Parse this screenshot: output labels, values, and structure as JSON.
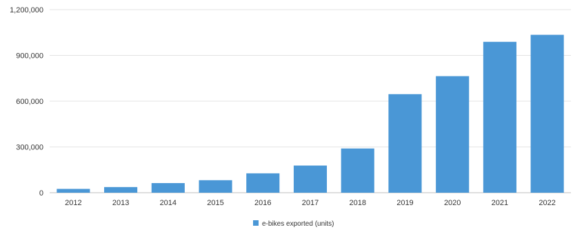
{
  "chart_data": {
    "type": "bar",
    "title": "",
    "xlabel": "",
    "ylabel": "",
    "categories": [
      "2012",
      "2013",
      "2014",
      "2015",
      "2016",
      "2017",
      "2018",
      "2019",
      "2020",
      "2021",
      "2022"
    ],
    "series": [
      {
        "name": "e-bikes exported (units)",
        "color": "#4a97d6",
        "values": [
          25000,
          37000,
          63000,
          82000,
          127000,
          178000,
          290000,
          646000,
          764000,
          989000,
          1035000
        ]
      }
    ],
    "ylim": [
      0,
      1200000
    ],
    "yticks": [
      "0",
      "300,000",
      "600,000",
      "900,000",
      "1,200,000"
    ],
    "grid": true,
    "legend_position": "bottom-center"
  }
}
